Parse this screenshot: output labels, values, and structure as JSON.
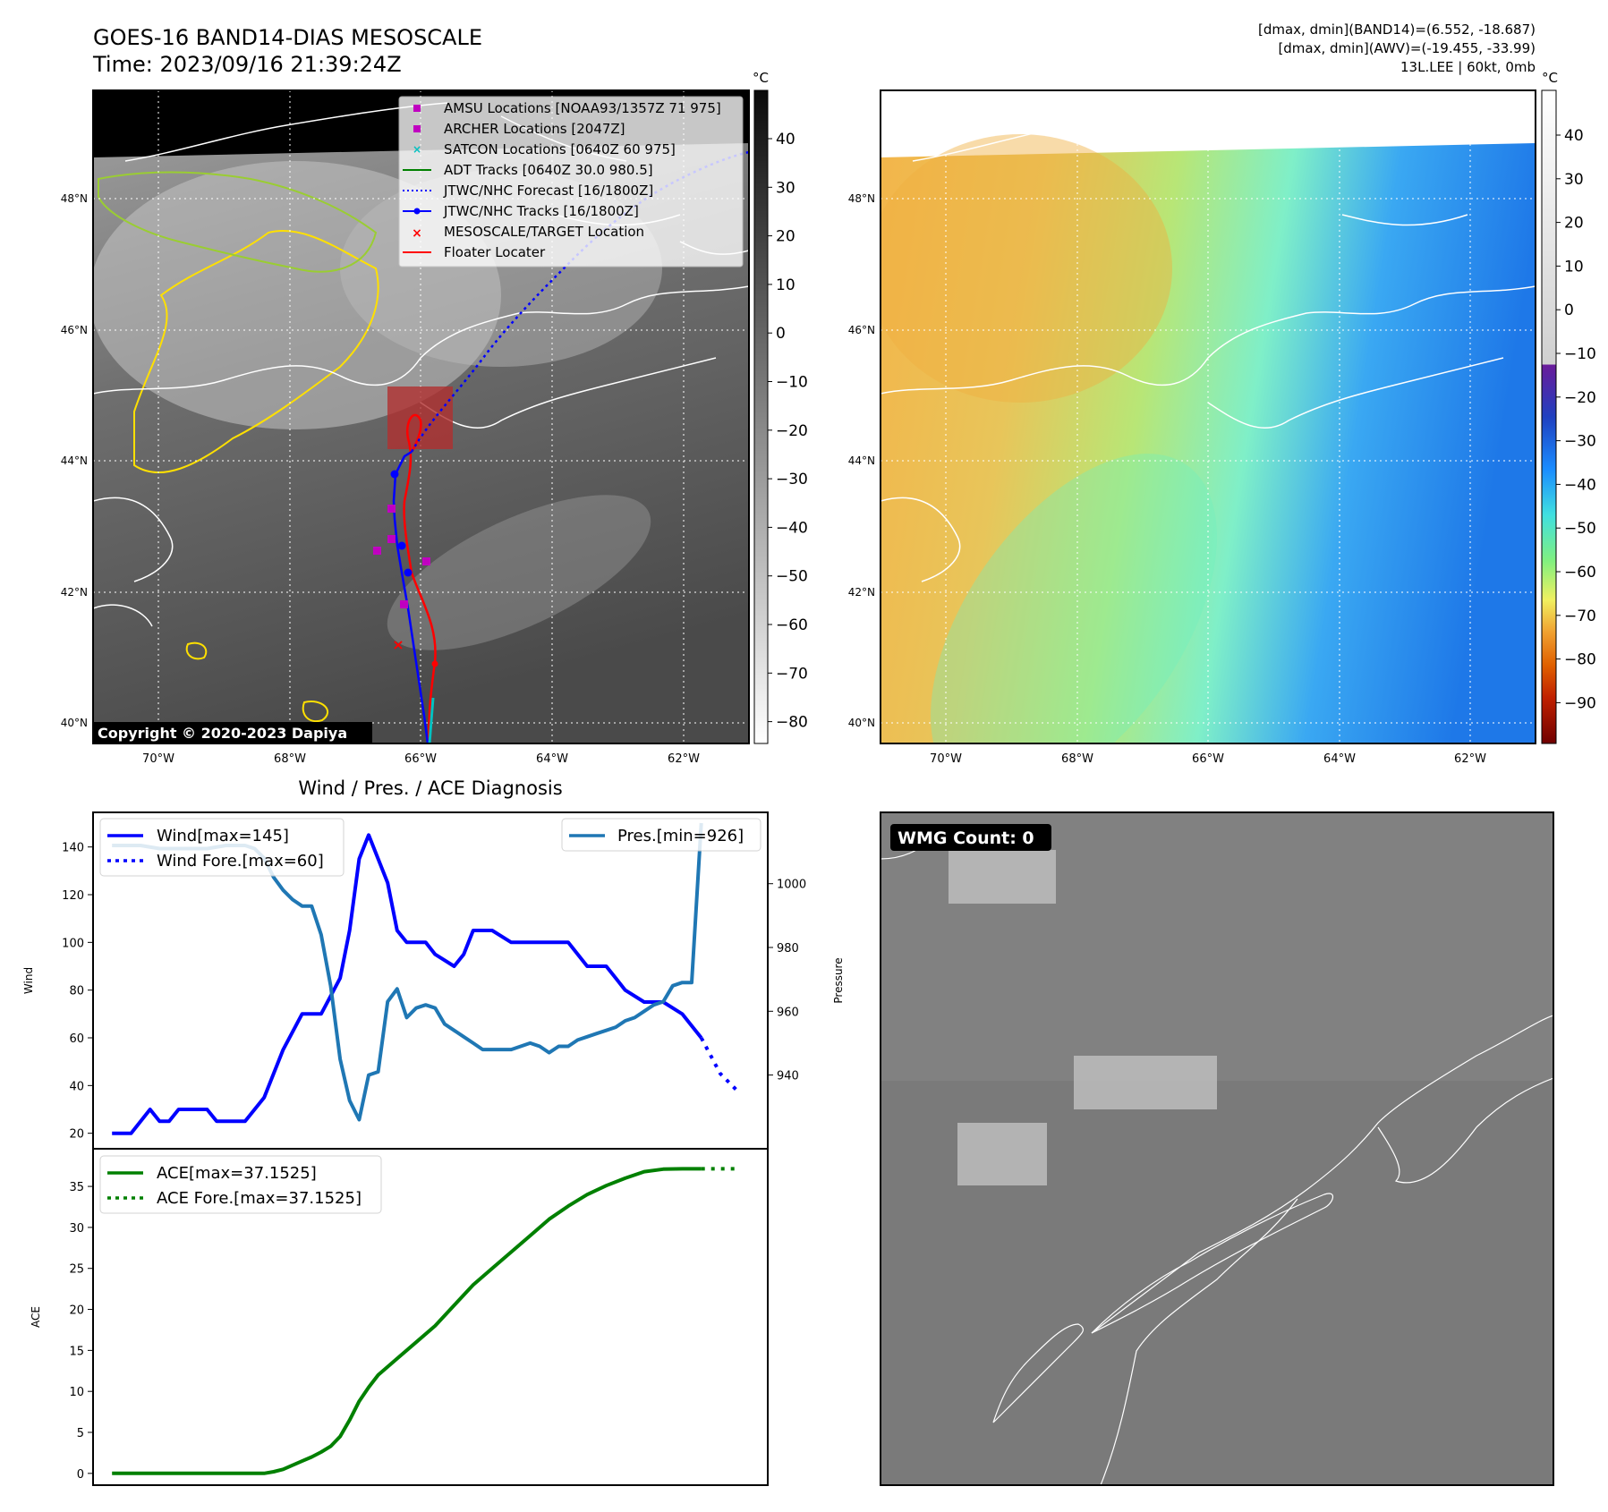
{
  "header": {
    "title_line1": "GOES-16 BAND14-DIAS MESOSCALE",
    "title_line2": "Time: 2023/09/16 21:39:24Z",
    "info_line1": "[dmax, dmin](BAND14)=(6.552, -18.687)",
    "info_line2": "[dmax, dmin](AWV)=(-19.455, -33.99)",
    "info_line3": "13L.LEE | 60kt, 0mb"
  },
  "map_axes": {
    "lon_ticks": [
      "70°W",
      "68°W",
      "66°W",
      "64°W",
      "62°W"
    ],
    "lat_ticks": [
      "48°N",
      "46°N",
      "44°N",
      "42°N",
      "40°N"
    ]
  },
  "ir_colorbar": {
    "unit": "°C",
    "ticks": [
      "40",
      "30",
      "20",
      "10",
      "0",
      "−10",
      "−20",
      "−30",
      "−40",
      "−50",
      "−60",
      "−70",
      "−80"
    ]
  },
  "awv_colorbar": {
    "unit": "°C",
    "ticks": [
      "40",
      "30",
      "20",
      "10",
      "0",
      "−10",
      "−20",
      "−30",
      "−40",
      "−50",
      "−60",
      "−70",
      "−80",
      "−90"
    ]
  },
  "legend": {
    "items": [
      {
        "label": "AMSU Locations [NOAA93/1357Z 71 975]",
        "color": "#c000c0"
      },
      {
        "label": "ARCHER Locations [2047Z]",
        "color": "#c000c0"
      },
      {
        "label": "SATCON Locations [0640Z 60 975]",
        "color": "#00c0c0"
      },
      {
        "label": "ADT Tracks [0640Z 30.0 980.5]",
        "color": "#008000"
      },
      {
        "label": "JTWC/NHC Forecast [16/1800Z]",
        "color": "#0000ff"
      },
      {
        "label": "JTWC/NHC Tracks [16/1800Z]",
        "color": "#0000ff"
      },
      {
        "label": "MESOSCALE/TARGET Location",
        "color": "#ff0000"
      },
      {
        "label": "Floater Locater",
        "color": "#ff0000"
      }
    ]
  },
  "copyright": "Copyright © 2020-2023 Dapiya",
  "wmg_label": "WMG Count: 0",
  "diagnosis_title": "Wind / Pres. / ACE Diagnosis",
  "chart_data": [
    {
      "type": "line",
      "ylabel": "Wind",
      "y2label": "Pressure",
      "ylim": [
        15,
        150
      ],
      "y2lim": [
        918,
        1019
      ],
      "yticks": [
        20,
        40,
        60,
        80,
        100,
        120,
        140
      ],
      "y2ticks": [
        940,
        960,
        980,
        1000
      ],
      "xlim": [
        -2,
        69
      ],
      "series": [
        {
          "name": "Wind[max=145]",
          "color": "#0000ff",
          "style": "solid",
          "x": [
            0,
            2,
            4,
            5,
            6,
            7,
            8,
            10,
            11,
            12,
            14,
            16,
            18,
            20,
            22,
            24,
            25,
            26,
            27,
            28,
            29,
            30,
            31,
            32,
            33,
            34,
            36,
            37,
            38,
            40,
            42,
            44,
            45,
            46,
            48,
            50,
            52,
            53,
            54,
            56,
            58,
            60,
            62
          ],
          "values": [
            20,
            20,
            30,
            25,
            25,
            30,
            30,
            30,
            25,
            25,
            25,
            35,
            55,
            70,
            70,
            85,
            105,
            135,
            145,
            135,
            125,
            105,
            100,
            100,
            100,
            95,
            90,
            95,
            105,
            105,
            100,
            100,
            100,
            100,
            100,
            90,
            90,
            85,
            80,
            75,
            75,
            70,
            60
          ]
        },
        {
          "name": "Wind Fore.[max=60]",
          "color": "#0000ff",
          "style": "dotted",
          "x": [
            62,
            64,
            66
          ],
          "values": [
            60,
            45,
            37
          ]
        },
        {
          "name": "Pres.[min=926]",
          "color": "#1f77b4",
          "style": "solid",
          "axis": "right",
          "x": [
            0,
            3,
            5,
            7,
            10,
            12,
            14,
            15,
            16,
            17,
            18,
            19,
            20,
            21,
            22,
            23,
            24,
            25,
            26,
            27,
            28,
            29,
            30,
            31,
            32,
            33,
            34,
            35,
            36,
            37,
            38,
            39,
            40,
            41,
            42,
            43,
            44,
            45,
            46,
            47,
            48,
            49,
            50,
            51,
            52,
            53,
            54,
            55,
            56,
            57,
            58,
            59,
            60,
            61,
            62
          ],
          "values": [
            1012,
            1012,
            1011,
            1011,
            1011,
            1012,
            1012,
            1011,
            1008,
            1002,
            998,
            995,
            993,
            993,
            984,
            968,
            945,
            932,
            926,
            940,
            941,
            963,
            967,
            958,
            961,
            962,
            961,
            956,
            954,
            952,
            950,
            948,
            948,
            948,
            948,
            949,
            950,
            949,
            947,
            949,
            949,
            951,
            952,
            953,
            954,
            955,
            957,
            958,
            960,
            962,
            963,
            968,
            969,
            969,
            1019
          ]
        }
      ]
    },
    {
      "type": "line",
      "ylabel": "ACE",
      "ylim": [
        -1,
        38.5
      ],
      "yticks": [
        0,
        5,
        10,
        15,
        20,
        25,
        30,
        35
      ],
      "xlim": [
        -2,
        69
      ],
      "series": [
        {
          "name": "ACE[max=37.1525]",
          "color": "#008000",
          "style": "solid",
          "x": [
            0,
            2,
            4,
            6,
            8,
            10,
            12,
            14,
            16,
            17,
            18,
            19,
            20,
            21,
            22,
            23,
            24,
            25,
            26,
            27,
            28,
            30,
            32,
            34,
            36,
            38,
            40,
            42,
            44,
            46,
            48,
            50,
            52,
            54,
            56,
            58,
            60,
            61,
            62
          ],
          "values": [
            0,
            0,
            0,
            0,
            0,
            0,
            0,
            0,
            0,
            0.2,
            0.5,
            1.0,
            1.5,
            2.0,
            2.6,
            3.3,
            4.5,
            6.5,
            8.8,
            10.5,
            12,
            14,
            16,
            18,
            20.5,
            23,
            25,
            27,
            29,
            31,
            32.6,
            34,
            35.1,
            36,
            36.8,
            37.1,
            37.15,
            37.15,
            37.15
          ]
        },
        {
          "name": "ACE Fore.[max=37.1525]",
          "color": "#008000",
          "style": "dotted",
          "x": [
            62,
            64,
            66
          ],
          "values": [
            37.15,
            37.15,
            37.15
          ]
        }
      ]
    }
  ]
}
